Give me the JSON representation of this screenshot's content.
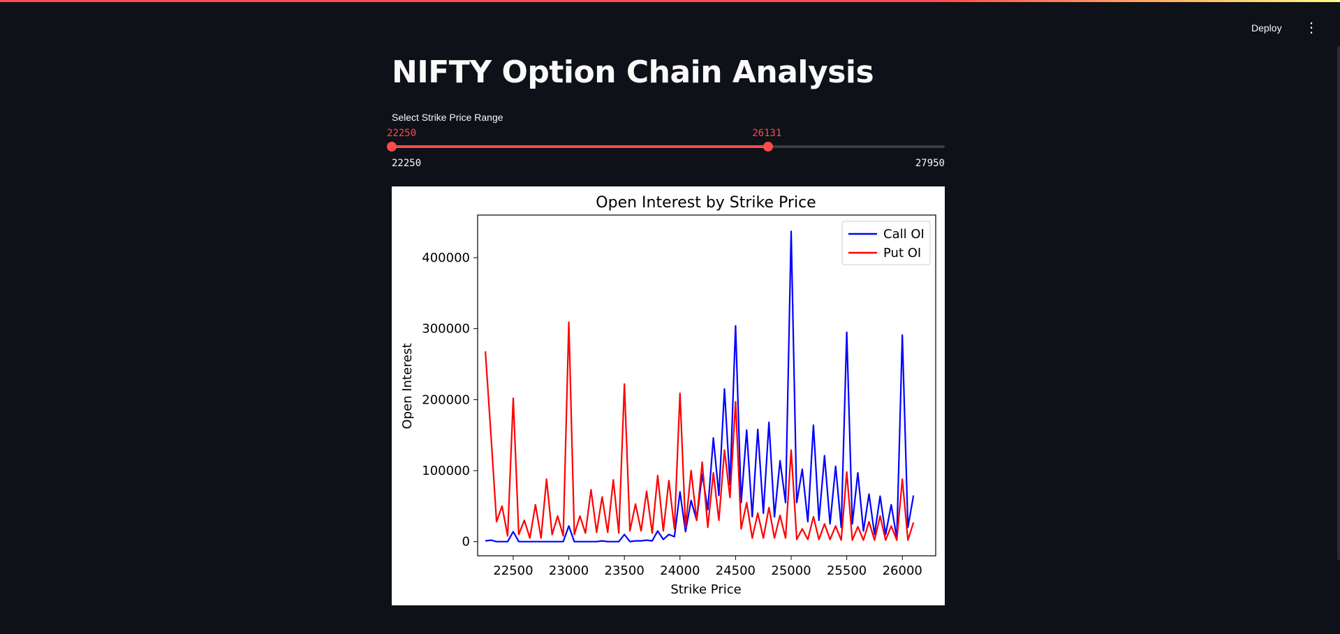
{
  "app": {
    "deploy_label": "Deploy",
    "menu_icon": "more-vertical-icon",
    "accent_color": "#ff4b4b"
  },
  "page": {
    "title": "NIFTY Option Chain Analysis"
  },
  "slider": {
    "label": "Select Strike Price Range",
    "min": 22250,
    "max": 27950,
    "low": 22250,
    "high": 26131,
    "min_label": "22250",
    "max_label": "27950",
    "low_label": "22250",
    "high_label": "26131"
  },
  "chart_data": {
    "type": "line",
    "title": "Open Interest by Strike Price",
    "xlabel": "Strike Price",
    "ylabel": "Open Interest",
    "xlim": [
      22180,
      26300
    ],
    "ylim": [
      -20000,
      460000
    ],
    "xticks": [
      22500,
      23000,
      23500,
      24000,
      24500,
      25000,
      25500,
      26000
    ],
    "yticks": [
      0,
      100000,
      200000,
      300000,
      400000
    ],
    "legend_position": "top-right",
    "grid": false,
    "x": [
      22250,
      22300,
      22350,
      22400,
      22450,
      22500,
      22550,
      22600,
      22650,
      22700,
      22750,
      22800,
      22850,
      22900,
      22950,
      23000,
      23050,
      23100,
      23150,
      23200,
      23250,
      23300,
      23350,
      23400,
      23450,
      23500,
      23550,
      23600,
      23650,
      23700,
      23750,
      23800,
      23850,
      23900,
      23950,
      24000,
      24050,
      24100,
      24150,
      24200,
      24250,
      24300,
      24350,
      24400,
      24450,
      24500,
      24550,
      24600,
      24650,
      24700,
      24750,
      24800,
      24850,
      24900,
      24950,
      25000,
      25050,
      25100,
      25150,
      25200,
      25250,
      25300,
      25350,
      25400,
      25450,
      25500,
      25550,
      25600,
      25650,
      25700,
      25750,
      25800,
      25850,
      25900,
      25950,
      26000,
      26050,
      26100
    ],
    "series": [
      {
        "name": "Call OI",
        "color": "#0000ff",
        "values": [
          1000,
          2000,
          0,
          0,
          0,
          14000,
          0,
          0,
          0,
          0,
          0,
          0,
          0,
          0,
          0,
          22000,
          0,
          0,
          0,
          0,
          0,
          1000,
          0,
          0,
          0,
          10000,
          0,
          1000,
          1000,
          2000,
          1000,
          15000,
          3000,
          10000,
          7000,
          70000,
          14000,
          58000,
          30000,
          95000,
          45000,
          146000,
          65000,
          215000,
          80000,
          304000,
          55000,
          157000,
          35000,
          158000,
          40000,
          168000,
          35000,
          114000,
          55000,
          437000,
          55000,
          102000,
          28000,
          164000,
          30000,
          121000,
          25000,
          106000,
          20000,
          295000,
          25000,
          97000,
          15000,
          67000,
          10000,
          64000,
          10000,
          52000,
          5000,
          291000,
          20000,
          65000
        ]
      },
      {
        "name": "Put OI",
        "color": "#ff0000",
        "values": [
          268000,
          150000,
          28000,
          50000,
          8000,
          202000,
          10000,
          30000,
          5000,
          52000,
          5000,
          88000,
          10000,
          36000,
          8000,
          309000,
          10000,
          36000,
          12000,
          73000,
          13000,
          63000,
          13000,
          87000,
          12000,
          222000,
          15000,
          53000,
          15000,
          71000,
          12000,
          93000,
          15000,
          86000,
          18000,
          209000,
          20000,
          100000,
          30000,
          112000,
          20000,
          97000,
          30000,
          129000,
          62000,
          197000,
          18000,
          55000,
          5000,
          40000,
          5000,
          48000,
          5000,
          37000,
          5000,
          129000,
          3000,
          18000,
          3000,
          35000,
          3000,
          25000,
          3000,
          22000,
          2000,
          98000,
          2000,
          21000,
          2000,
          28000,
          2000,
          36000,
          2000,
          22000,
          2000,
          88000,
          2000,
          27000
        ]
      }
    ]
  }
}
